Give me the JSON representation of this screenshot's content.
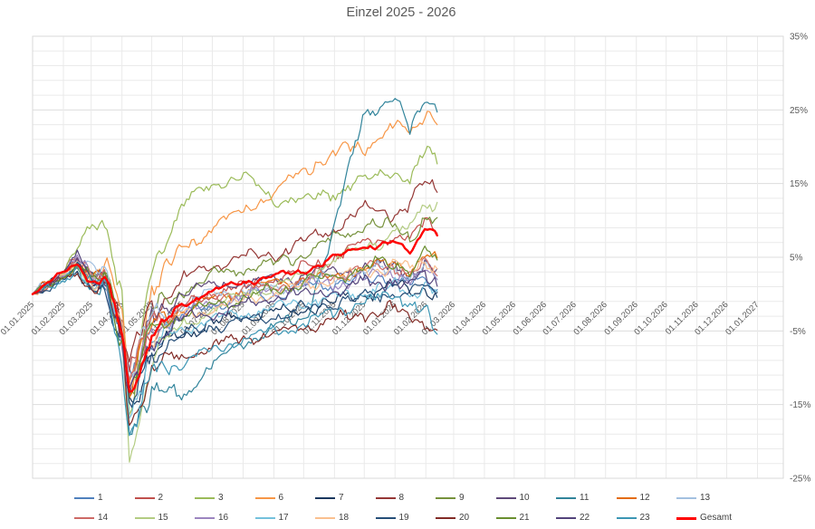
{
  "title": "Einzel 2025 - 2026",
  "chart_data": {
    "type": "line",
    "title": "Einzel 2025 - 2026",
    "x_axis": {
      "unit": "days since 01.01.2025",
      "range": [
        0,
        756
      ],
      "tick_days": [
        0,
        31,
        59,
        90,
        120,
        151,
        181,
        212,
        243,
        273,
        304,
        334,
        365,
        396,
        424,
        455,
        485,
        516,
        546,
        577,
        608,
        638,
        669,
        699,
        730
      ],
      "tick_labels": [
        "01.01.2025",
        "01.02.2025",
        "01.03.2025",
        "01.04.2025",
        "01.05.2025",
        "01.06.2025",
        "01.07.2025",
        "01.08.2025",
        "01.09.2025",
        "01.10.2025",
        "01.11.2025",
        "01.12.2025",
        "01.01.2026",
        "01.02.2026",
        "01.03.2026",
        "01.04.2026",
        "01.05.2026",
        "01.06.2026",
        "01.07.2026",
        "01.08.2026",
        "01.09.2026",
        "01.10.2026",
        "01.11.2026",
        "01.12.2026",
        "01.01.2027"
      ],
      "label_rotation_deg": -45
    },
    "y_axis": {
      "side": "right",
      "range": [
        -25,
        35
      ],
      "tick_values": [
        35,
        25,
        15,
        5,
        -5,
        -15,
        -25
      ],
      "tick_labels": [
        "35%",
        "25%",
        "15%",
        "5%",
        "-5%",
        "-15%",
        "-25%"
      ],
      "minor_grid_step_pct": 2
    },
    "grid": {
      "horizontal": true,
      "vertical": true
    },
    "data_end_day": 409,
    "control_days": [
      0,
      31,
      45,
      59,
      74,
      90,
      98,
      120,
      151,
      181,
      212,
      243,
      273,
      304,
      334,
      365,
      380,
      396,
      409
    ],
    "series": [
      {
        "name": "1",
        "color": "#4F81BD",
        "width": 1.2,
        "values": [
          0,
          2.5,
          4,
          1.5,
          2,
          -5,
          -13,
          -7,
          -3,
          -1.5,
          -0.5,
          0,
          1,
          1.5,
          2,
          2.5,
          1.5,
          1.5,
          0.5
        ]
      },
      {
        "name": "2",
        "color": "#C0504D",
        "width": 1.2,
        "values": [
          0,
          3,
          4.5,
          2,
          2.5,
          -4.5,
          -12,
          -5,
          -2,
          0,
          1,
          2,
          3.5,
          5,
          7,
          8,
          7,
          10,
          9
        ]
      },
      {
        "name": "3",
        "color": "#9BBB59",
        "width": 1.2,
        "values": [
          0,
          3,
          6,
          9,
          10,
          0,
          -19,
          4,
          12,
          15,
          16,
          13,
          12.5,
          14,
          15.5,
          17,
          15,
          19.5,
          18
        ]
      },
      {
        "name": "6",
        "color": "#F79646",
        "width": 1.2,
        "values": [
          0,
          2.5,
          4,
          2.5,
          4,
          -3,
          -12,
          1,
          6,
          9,
          11.5,
          13.5,
          17,
          19,
          20,
          23,
          21.5,
          25,
          24
        ]
      },
      {
        "name": "7",
        "color": "#17375E",
        "width": 1.2,
        "values": [
          0,
          2,
          3.5,
          1,
          1.5,
          -6,
          -15,
          -8,
          -5.5,
          -4,
          -3,
          -2.5,
          -2,
          -1,
          0,
          1,
          0.5,
          1,
          -0.5
        ]
      },
      {
        "name": "8",
        "color": "#953735",
        "width": 1.2,
        "values": [
          0,
          3,
          4.5,
          2,
          3,
          -4,
          -10,
          -2,
          2,
          4,
          5,
          5.5,
          7,
          9,
          11.5,
          11,
          12,
          15,
          14
        ]
      },
      {
        "name": "9",
        "color": "#76923C",
        "width": 1.2,
        "values": [
          0,
          2.5,
          4,
          2,
          2.5,
          -4.5,
          -13,
          -3,
          0.5,
          2.5,
          3.5,
          4,
          5.5,
          7.5,
          9.5,
          9,
          8,
          10.5,
          9.5
        ]
      },
      {
        "name": "10",
        "color": "#5F497A",
        "width": 1.2,
        "values": [
          0,
          3,
          5,
          2.5,
          2,
          -5.5,
          -14,
          -4,
          0.5,
          1,
          1.5,
          2,
          2.5,
          3,
          3.5,
          4,
          3,
          3.5,
          2.5
        ]
      },
      {
        "name": "11",
        "color": "#31849B",
        "width": 1.2,
        "values": [
          0,
          2,
          3.5,
          1,
          1,
          -8,
          -19,
          -12,
          -14.5,
          -9,
          -7,
          -4,
          -4,
          9,
          25,
          26,
          22,
          27.5,
          25
        ]
      },
      {
        "name": "12",
        "color": "#E36C0A",
        "width": 1.2,
        "values": [
          0,
          2.5,
          4,
          2,
          2,
          -5,
          -12,
          -4.5,
          -2,
          -0.5,
          0.5,
          1.5,
          2,
          2.5,
          3.5,
          4.5,
          3.5,
          5,
          4
        ]
      },
      {
        "name": "13",
        "color": "#A3C0E0",
        "width": 1.2,
        "values": [
          0,
          3,
          4.5,
          3,
          3,
          -4,
          -11,
          -3.5,
          -1,
          0,
          0.5,
          1,
          1.5,
          2.5,
          3,
          3.5,
          2.5,
          3,
          2
        ]
      },
      {
        "name": "14",
        "color": "#CD6A66",
        "width": 1.2,
        "values": [
          0,
          3,
          4.5,
          2,
          2.5,
          -4.5,
          -12,
          -4,
          -1.5,
          -0.5,
          0.5,
          1,
          2,
          2.5,
          3.5,
          4,
          3,
          3.5,
          2.5
        ]
      },
      {
        "name": "15",
        "color": "#B3CC82",
        "width": 1.2,
        "values": [
          0,
          2.5,
          4,
          2,
          2,
          -7,
          -23,
          -8,
          -4.5,
          -2,
          0,
          1,
          2.5,
          4.5,
          6.5,
          8,
          9,
          13,
          12
        ]
      },
      {
        "name": "16",
        "color": "#9C85C0",
        "width": 1.2,
        "values": [
          0,
          3,
          5,
          2,
          2,
          -5.5,
          -14,
          -5,
          -2.5,
          -1.5,
          -0.5,
          0.5,
          1,
          1.5,
          2,
          3,
          2,
          2.5,
          1.5
        ]
      },
      {
        "name": "17",
        "color": "#74C1DC",
        "width": 1.2,
        "values": [
          0,
          2,
          3.5,
          1,
          1,
          -6.5,
          -16,
          -7,
          -4.5,
          -3.5,
          -2.5,
          -2,
          -1,
          -0.5,
          0.5,
          1,
          0,
          1.5,
          0.5
        ]
      },
      {
        "name": "18",
        "color": "#FAC08F",
        "width": 1.2,
        "values": [
          0,
          2.5,
          4,
          2,
          2,
          -5.5,
          -15,
          -5,
          -3,
          -2,
          -1,
          0,
          1,
          2,
          3,
          4,
          3,
          4.5,
          3.5
        ]
      },
      {
        "name": "19",
        "color": "#254E78",
        "width": 1.2,
        "values": [
          0,
          2,
          3.5,
          1,
          1,
          -6.5,
          -16,
          -8,
          -5.5,
          -4.5,
          -3.5,
          -3,
          -2,
          -1,
          -0.5,
          0.5,
          -0.5,
          1,
          0
        ]
      },
      {
        "name": "20",
        "color": "#822B26",
        "width": 1.2,
        "values": [
          0,
          2,
          3,
          1,
          1,
          -7.5,
          -17,
          -10,
          -8.5,
          -7,
          -6,
          -5.5,
          -4.5,
          -3.5,
          -2.5,
          -2,
          -3,
          -4,
          -5
        ]
      },
      {
        "name": "21",
        "color": "#6A8F2F",
        "width": 1.2,
        "values": [
          0,
          2.5,
          4,
          2,
          2,
          -5.5,
          -14,
          -5,
          -2.5,
          -1.5,
          -0.5,
          0.5,
          1.5,
          2.5,
          3.5,
          4.5,
          3.5,
          5.5,
          4.5
        ]
      },
      {
        "name": "22",
        "color": "#53437B",
        "width": 1.2,
        "values": [
          0,
          3,
          5,
          2,
          2,
          -6,
          -15,
          -6,
          -3.5,
          -2.5,
          -1.5,
          -0.5,
          0,
          0.5,
          1.5,
          2,
          1,
          2.5,
          1.5
        ]
      },
      {
        "name": "23",
        "color": "#3C96B4",
        "width": 1.2,
        "values": [
          0,
          2,
          3.5,
          1,
          1,
          -8.5,
          -20,
          -11,
          -9,
          -7.5,
          -6,
          -5,
          -4,
          -2.5,
          -1,
          0,
          -1,
          -2,
          -7
        ]
      },
      {
        "name": "Gesamt",
        "color": "#FF0000",
        "width": 2.4,
        "values": [
          0,
          3,
          4.2,
          1.5,
          2,
          -5.5,
          -14,
          -5.5,
          -1.5,
          0.5,
          1.5,
          2.5,
          3,
          5,
          6.5,
          7,
          5.5,
          9.5,
          8
        ]
      }
    ],
    "legend": {
      "position": "bottom",
      "rows": [
        [
          "1",
          "2",
          "3",
          "6",
          "7",
          "8",
          "9",
          "10",
          "11",
          "12",
          "13"
        ],
        [
          "14",
          "15",
          "16",
          "17",
          "18",
          "19",
          "20",
          "21",
          "22",
          "23",
          "Gesamt"
        ]
      ]
    }
  },
  "style_colors": {
    "title_text": "#595959",
    "axis_text": "#595959",
    "legend_text": "#404040",
    "grid_minor": "#EAEAEA",
    "grid_major": "#DDDDDD",
    "zero_axis": "#C0C0C0",
    "plot_border": "#D9D9D9"
  }
}
